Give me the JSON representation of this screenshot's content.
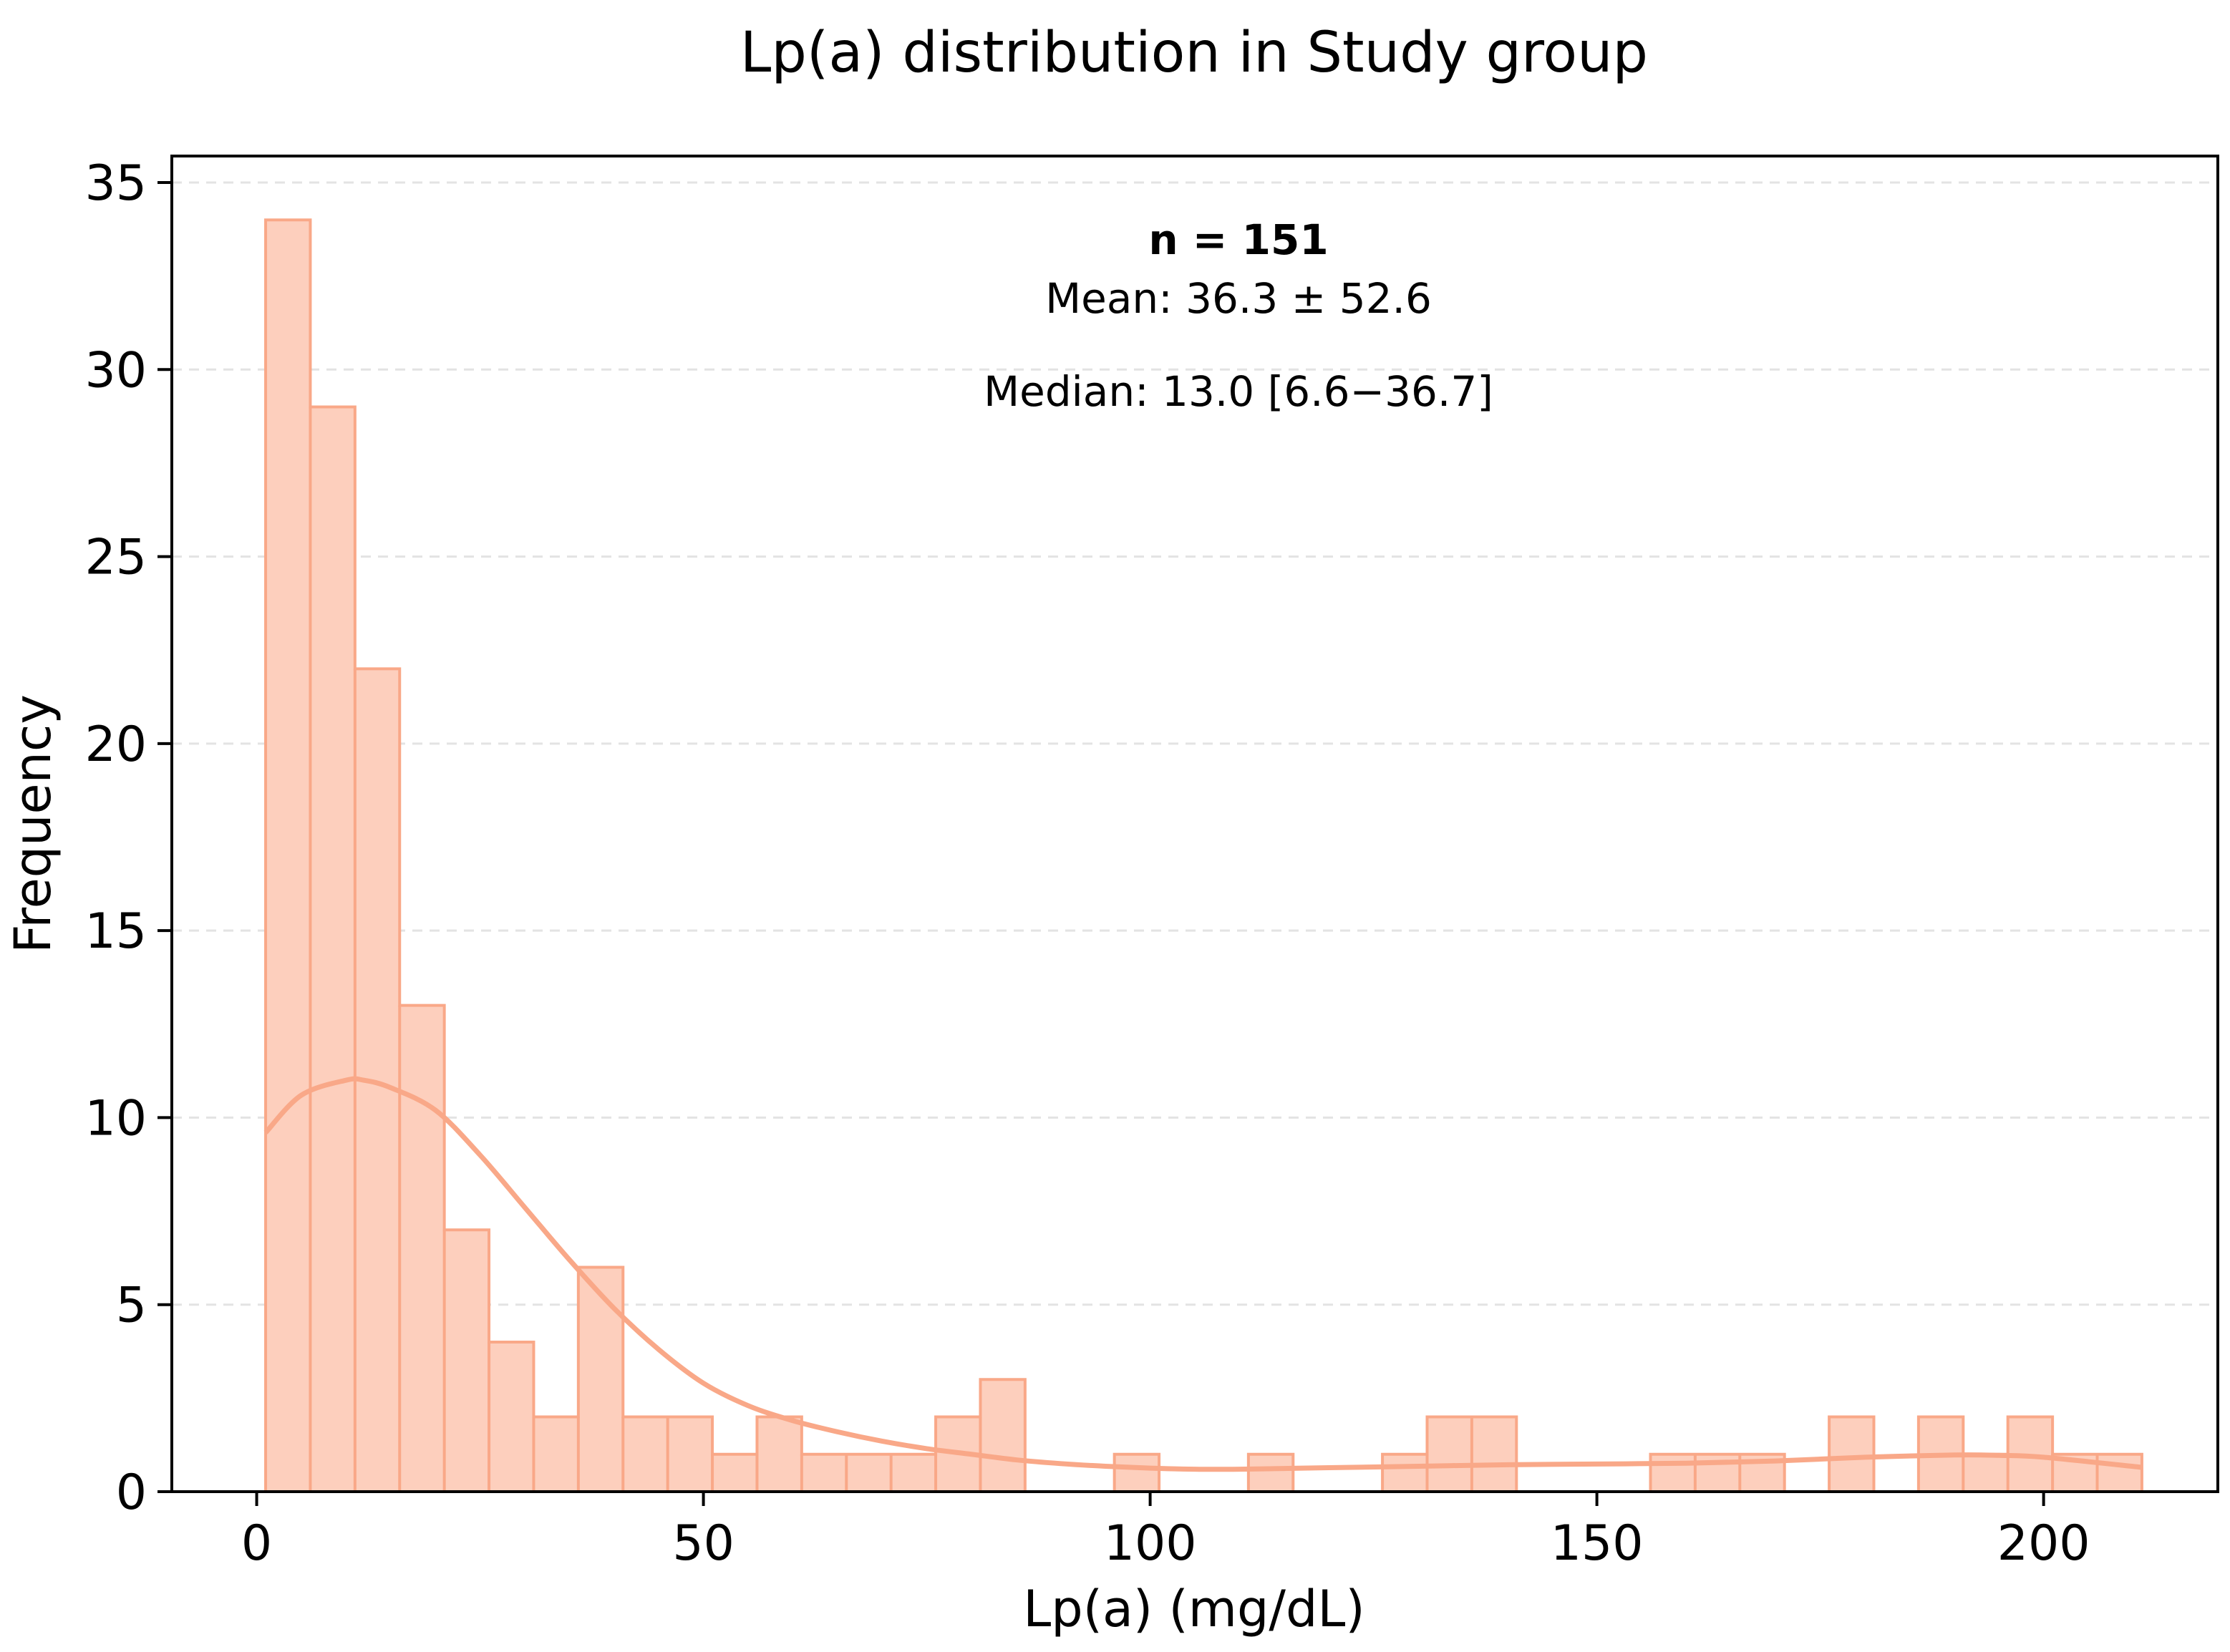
{
  "chart_data": {
    "type": "bar",
    "subtype": "histogram-with-kde",
    "title": "Lp(a) distribution in Study group",
    "xlabel": "Lp(a) (mg/dL)",
    "ylabel": "Frequency",
    "xlim": [
      -9.5,
      219.5
    ],
    "ylim": [
      0,
      35.7
    ],
    "x_ticks": [
      0,
      50,
      100,
      150,
      200
    ],
    "y_ticks": [
      0,
      5,
      10,
      15,
      20,
      25,
      30,
      35
    ],
    "grid": "y-dashed",
    "bin_edges": [
      1,
      6,
      11,
      16,
      21,
      26,
      31,
      36,
      41,
      46,
      51,
      56,
      61,
      66,
      71,
      76,
      81,
      86,
      91,
      96,
      101,
      106,
      111,
      116,
      121,
      126,
      131,
      136,
      141,
      146,
      151,
      156,
      161,
      166,
      171,
      176,
      181,
      186,
      191,
      196,
      201,
      206,
      211
    ],
    "values": [
      34,
      29,
      22,
      13,
      7,
      4,
      2,
      6,
      2,
      2,
      1,
      2,
      1,
      1,
      1,
      2,
      3,
      0,
      0,
      1,
      0,
      0,
      1,
      0,
      0,
      1,
      2,
      2,
      0,
      0,
      0,
      1,
      1,
      1,
      0,
      2,
      0,
      2,
      1,
      2,
      1,
      1
    ],
    "kde": {
      "x": [
        1,
        5,
        10,
        12,
        15,
        20,
        25,
        30,
        35,
        40,
        45,
        50,
        55,
        60,
        65,
        70,
        75,
        80,
        85,
        90,
        95,
        100,
        105,
        110,
        115,
        120,
        130,
        140,
        150,
        160,
        170,
        180,
        190,
        195,
        200,
        211
      ],
      "y": [
        9.6,
        10.6,
        11.0,
        11.0,
        10.8,
        10.2,
        9.0,
        7.6,
        6.2,
        4.9,
        3.8,
        2.9,
        2.3,
        1.9,
        1.6,
        1.35,
        1.15,
        1.0,
        0.85,
        0.75,
        0.68,
        0.63,
        0.6,
        0.6,
        0.62,
        0.64,
        0.68,
        0.72,
        0.74,
        0.76,
        0.82,
        0.92,
        0.98,
        0.97,
        0.92,
        0.65
      ]
    },
    "annotations": {
      "n": "n = 151",
      "mean": "Mean: 36.3 ± 52.6",
      "median": "Median: 13.0 [6.6−36.7]"
    },
    "colors": {
      "fill": "#fdcfbd",
      "edge": "#f9a888",
      "kde": "#f9a888",
      "grid": "#e3e3e3"
    }
  }
}
